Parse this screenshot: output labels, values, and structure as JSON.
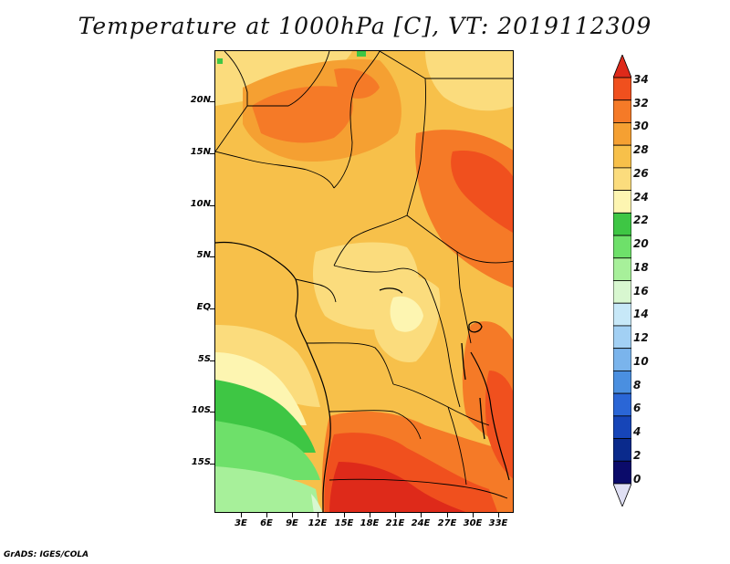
{
  "title": "Temperature at 1000hPa [C], VT: 2019112309",
  "footer": "GrADS: IGES/COLA",
  "map": {
    "lat_labels": [
      "20N",
      "15N",
      "10N",
      "5N",
      "EQ",
      "5S",
      "10S",
      "15S"
    ],
    "lon_labels": [
      "3E",
      "6E",
      "9E",
      "12E",
      "15E",
      "18E",
      "21E",
      "24E",
      "27E",
      "30E",
      "33E"
    ]
  },
  "colorbar": {
    "labels": [
      "34",
      "32",
      "30",
      "28",
      "26",
      "24",
      "22",
      "20",
      "18",
      "16",
      "14",
      "12",
      "10",
      "8",
      "6",
      "4",
      "2",
      "0"
    ],
    "colors": [
      "#de2a1a",
      "#f0501e",
      "#f57a27",
      "#f5a032",
      "#f7c04a",
      "#fbdc7d",
      "#fdf5b1",
      "#3ec644",
      "#6ee06a",
      "#a7f09a",
      "#d8f7d0",
      "#c7e8f8",
      "#a2d0f4",
      "#7ab4ec",
      "#4a8fe0",
      "#2a66d6",
      "#1645b8",
      "#0a2a8c",
      "#0b0b6a",
      "#e0e0f4"
    ]
  }
}
